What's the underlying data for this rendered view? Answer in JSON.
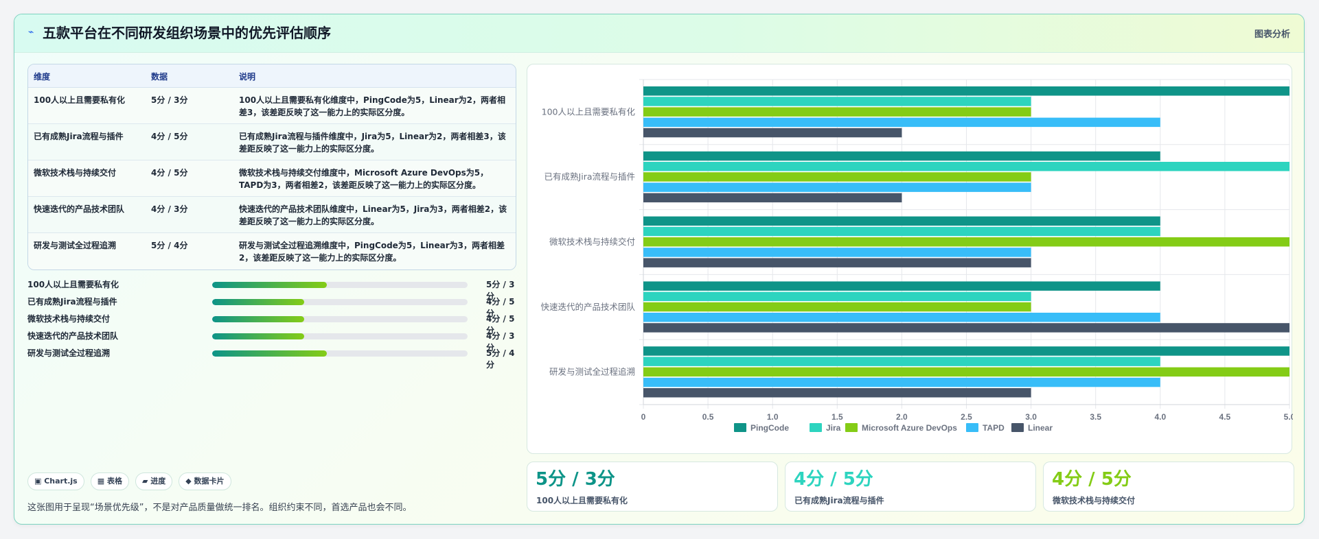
{
  "header": {
    "icon": "sparkline-icon",
    "title": "五款平台在不同研发组织场景中的优先评估顺序",
    "tag": "图表分析"
  },
  "table": {
    "headers": [
      "维度",
      "数据",
      "说明"
    ],
    "rows": [
      {
        "dimension": "100人以上且需要私有化",
        "data": "5分 / 3分",
        "desc": "100人以上且需要私有化维度中，PingCode为5，Linear为2，两者相差3，该差距反映了这一能力上的实际区分度。"
      },
      {
        "dimension": "已有成熟Jira流程与插件",
        "data": "4分 / 5分",
        "desc": "已有成熟Jira流程与插件维度中，Jira为5，Linear为2，两者相差3，该差距反映了这一能力上的实际区分度。"
      },
      {
        "dimension": "微软技术栈与持续交付",
        "data": "4分 / 5分",
        "desc": "微软技术栈与持续交付维度中，Microsoft Azure DevOps为5，TAPD为3，两者相差2，该差距反映了这一能力上的实际区分度。"
      },
      {
        "dimension": "快速迭代的产品技术团队",
        "data": "4分 / 3分",
        "desc": "快速迭代的产品技术团队维度中，Linear为5，Jira为3，两者相差2，该差距反映了这一能力上的实际区分度。"
      },
      {
        "dimension": "研发与测试全过程追溯",
        "data": "5分 / 4分",
        "desc": "研发与测试全过程追溯维度中，PingCode为5，Linear为3，两者相差2，该差距反映了这一能力上的实际区分度。"
      }
    ]
  },
  "progress": [
    {
      "label": "100人以上且需要私有化",
      "value": "5分 / 3分",
      "fraction": 0.45
    },
    {
      "label": "已有成熟Jira流程与插件",
      "value": "4分 / 5分",
      "fraction": 0.36
    },
    {
      "label": "微软技术栈与持续交付",
      "value": "4分 / 5分",
      "fraction": 0.36
    },
    {
      "label": "快速迭代的产品技术团队",
      "value": "4分 / 3分",
      "fraction": 0.36
    },
    {
      "label": "研发与测试全过程追溯",
      "value": "5分 / 4分",
      "fraction": 0.45
    }
  ],
  "chips": [
    "▣ Chart.js",
    "▦ 表格",
    "▰ 进度",
    "◆ 数据卡片"
  ],
  "note": "这张图用于呈现“场景优先级”，不是对产品质量做统一排名。组织约束不同，首选产品也会不同。",
  "kpis": [
    {
      "value": "5分 / 3分",
      "label": "100人以上且需要私有化",
      "color": "#0d9488"
    },
    {
      "value": "4分 / 5分",
      "label": "已有成熟Jira流程与插件",
      "color": "#2dd4bf"
    },
    {
      "value": "4分 / 5分",
      "label": "微软技术栈与持续交付",
      "color": "#84cc16"
    }
  ],
  "chart_data": {
    "type": "bar",
    "orientation": "horizontal",
    "categories": [
      "100人以上且需要私有化",
      "已有成熟Jira流程与插件",
      "微软技术栈与持续交付",
      "快速迭代的产品技术团队",
      "研发与测试全过程追溯"
    ],
    "series": [
      {
        "name": "PingCode",
        "color": "#0f9488",
        "values": [
          5,
          4,
          4,
          4,
          5
        ]
      },
      {
        "name": "Jira",
        "color": "#2dd4bf",
        "values": [
          3,
          5,
          4,
          3,
          4
        ]
      },
      {
        "name": "Microsoft Azure DevOps",
        "color": "#84cc16",
        "values": [
          3,
          3,
          5,
          3,
          5
        ]
      },
      {
        "name": "TAPD",
        "color": "#38bdf8",
        "values": [
          4,
          3,
          3,
          4,
          4
        ]
      },
      {
        "name": "Linear",
        "color": "#475569",
        "values": [
          2,
          2,
          3,
          5,
          3
        ]
      }
    ],
    "xlim": [
      0,
      5
    ],
    "xticks": [
      "0",
      "0.5",
      "1.0",
      "1.5",
      "2.0",
      "2.5",
      "3.0",
      "3.5",
      "4.0",
      "4.5",
      "5.0"
    ],
    "grid": true,
    "legend": "bottom"
  }
}
